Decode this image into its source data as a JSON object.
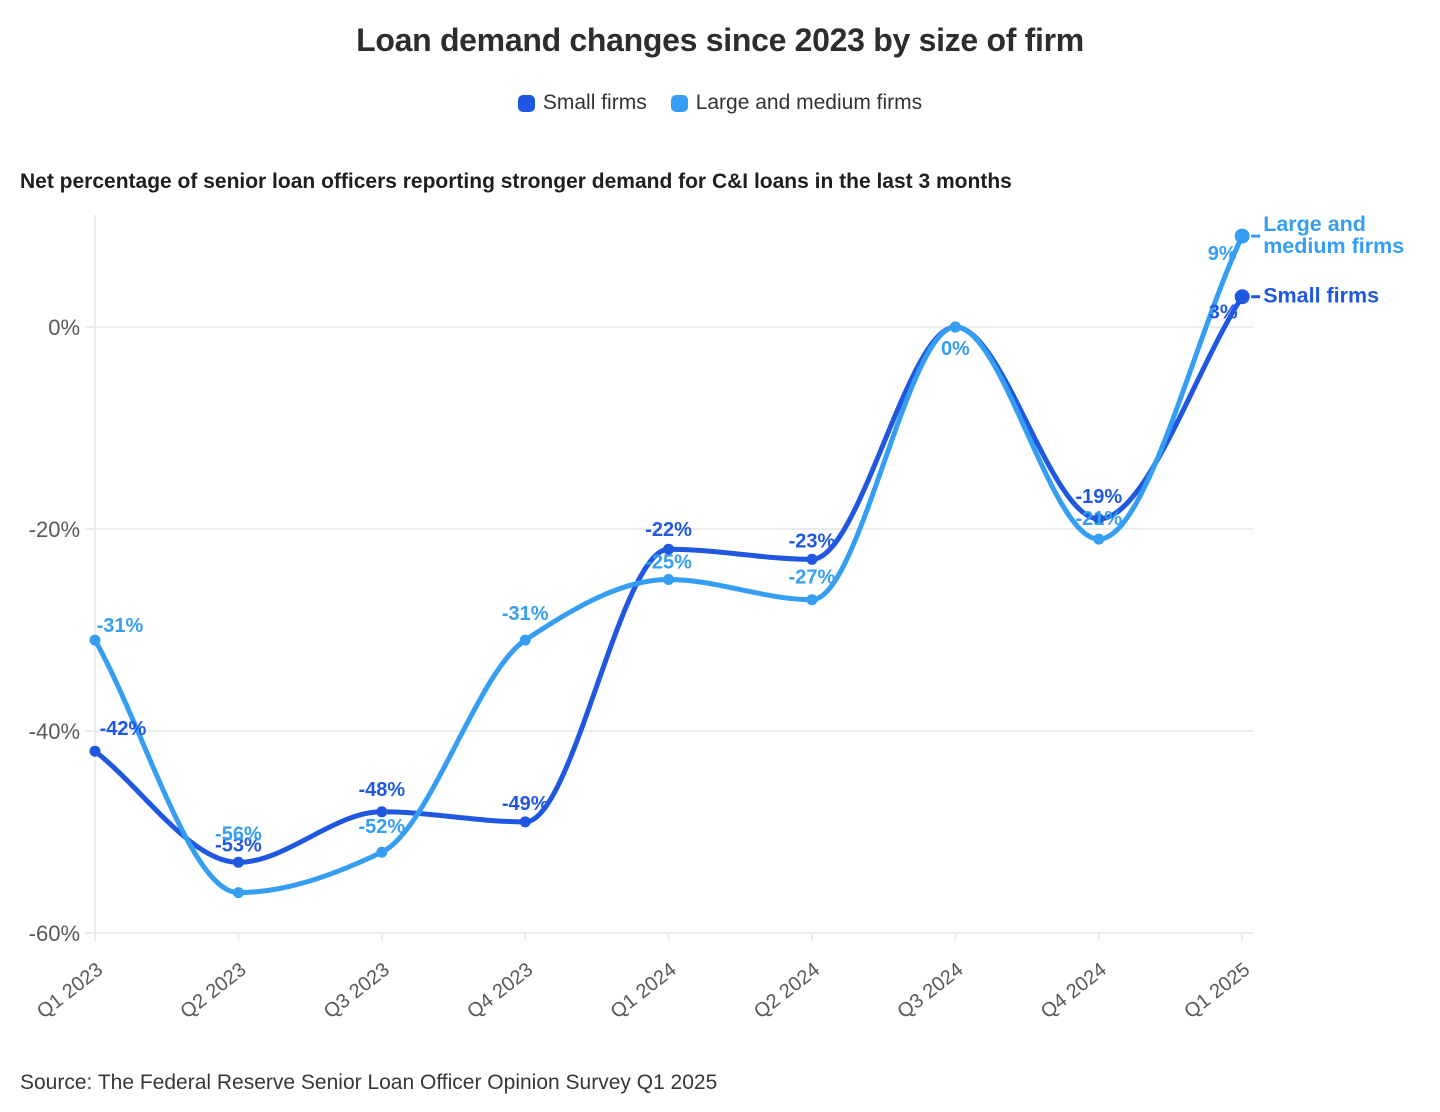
{
  "title": "Loan demand changes since 2023 by size of firm",
  "subtitle": "Net percentage of senior loan officers reporting stronger demand for C&I loans in the last 3 months",
  "source": "Source: The Federal Reserve Senior Loan Officer Opinion Survey Q1 2025",
  "legend": [
    {
      "label": "Small firms",
      "color": "#2057e0"
    },
    {
      "label": "Large and medium firms",
      "color": "#359ef2"
    }
  ],
  "colors": {
    "grid": "#ececec",
    "axis_text": "#58595b",
    "title_text": "#2d2d2d",
    "background": "#ffffff"
  },
  "chart_data": {
    "type": "line",
    "categories": [
      "Q1 2023",
      "Q2 2023",
      "Q3 2023",
      "Q4 2023",
      "Q1 2024",
      "Q2 2024",
      "Q3 2024",
      "Q4 2024",
      "Q1 2025"
    ],
    "series": [
      {
        "name": "Small firms",
        "color": "#2057e0",
        "values": [
          -42,
          -53,
          -48,
          -49,
          -22,
          -23,
          0,
          -19,
          3
        ],
        "point_labels": [
          "-42%",
          "-53%",
          "-48%",
          "-49%",
          "-22%",
          "-23%",
          "",
          "-19%",
          "3%"
        ],
        "end_label_lines": [
          "Small firms"
        ]
      },
      {
        "name": "Large and medium firms",
        "color": "#359ef2",
        "values": [
          -31,
          -56,
          -52,
          -31,
          -25,
          -27,
          0,
          -21,
          9
        ],
        "point_labels": [
          "-31%",
          "-56%",
          "-52%",
          "-31%",
          "-25%",
          "-27%",
          "0%",
          "-21%",
          "9%"
        ],
        "end_label_lines": [
          "Large and",
          "medium firms"
        ]
      }
    ],
    "y_axis": {
      "ticks": [
        {
          "label": "0%",
          "value": 0
        },
        {
          "label": "-20%",
          "value": -20
        },
        {
          "label": "-40%",
          "value": -40
        },
        {
          "label": "-60%",
          "value": -60
        }
      ],
      "range": [
        -60,
        12
      ]
    },
    "grid": "horizontal",
    "legend_position": "top",
    "curve": "monotone"
  }
}
